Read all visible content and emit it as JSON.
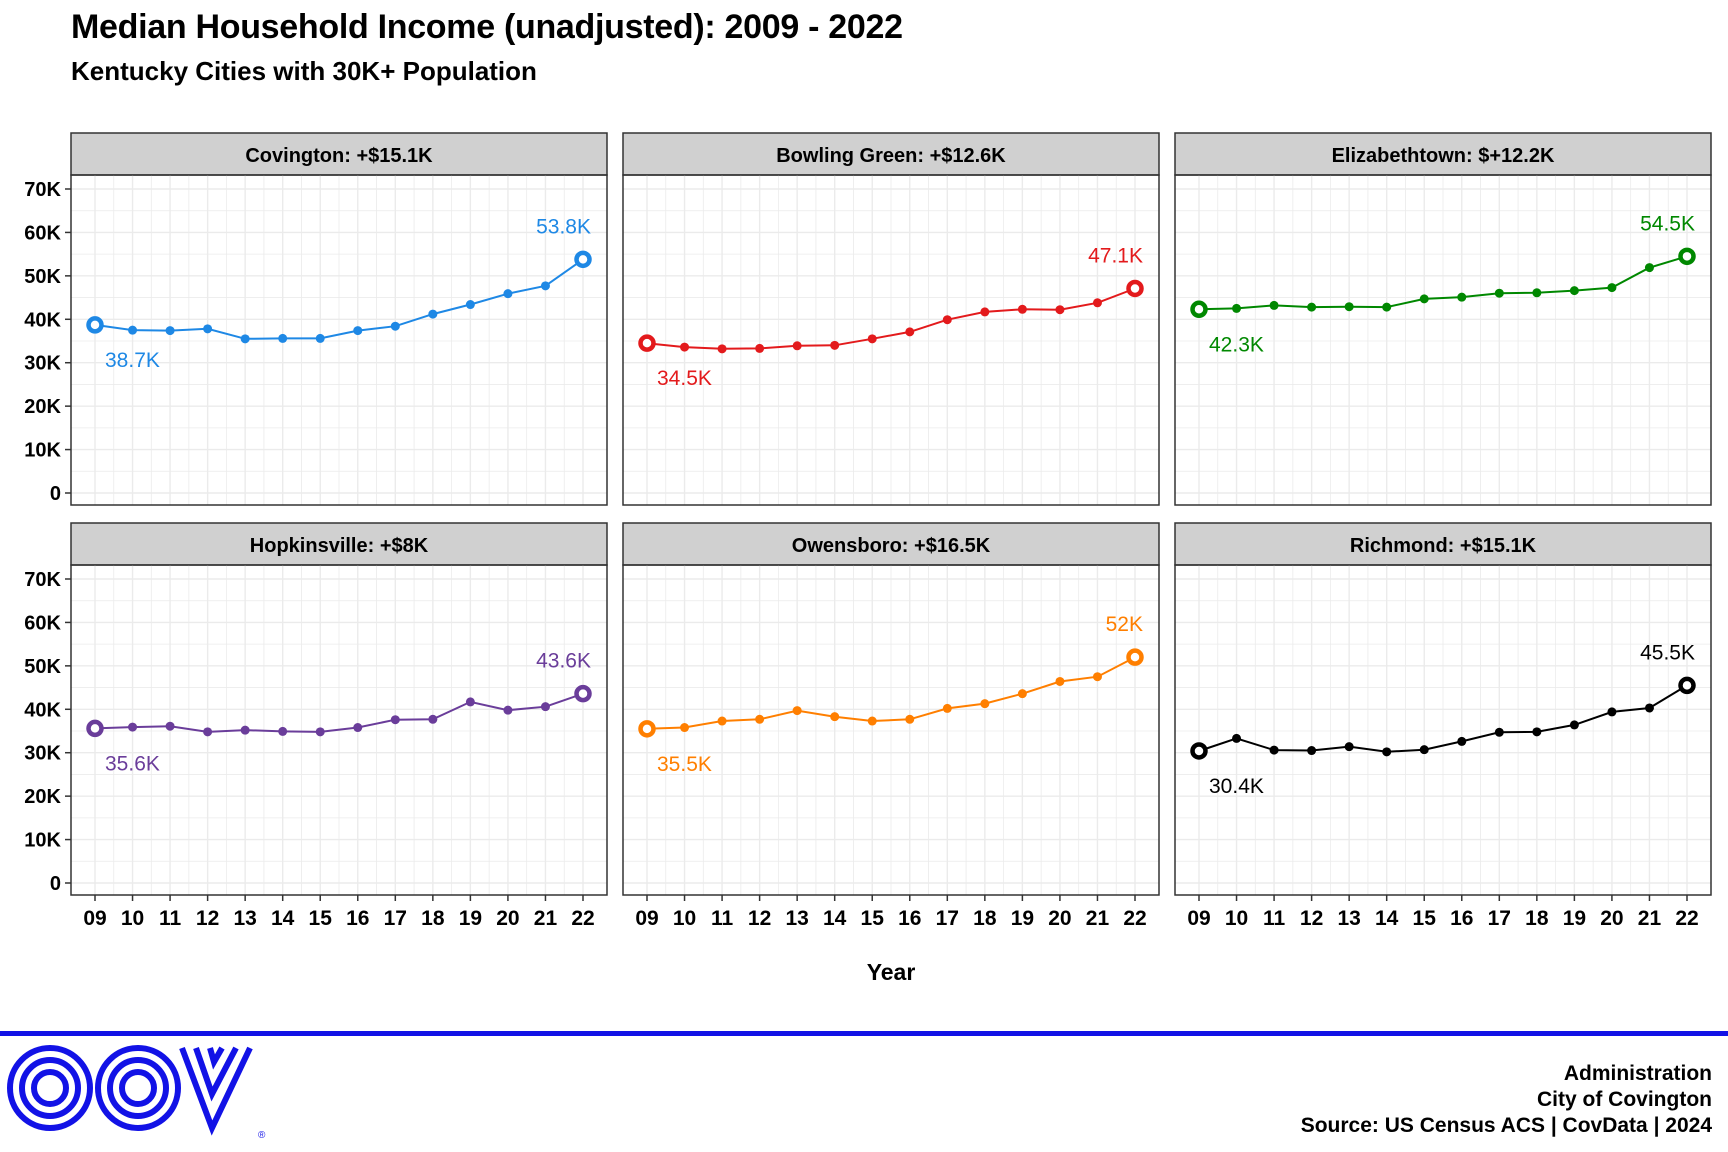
{
  "title": "Median Household Income (unadjusted): 2009 - 2022",
  "subtitle": "Kentucky Cities with 30K+ Population",
  "footer": {
    "line1": "Administration",
    "line2": "City of Covington",
    "line3": "Source: US Census ACS | CovData | 2024",
    "logo_text": "COV"
  },
  "colors": {
    "panel_strip": "#d0d0d0",
    "grid": "#ebebeb",
    "footer_bar": "#1212e6"
  },
  "chart_data": {
    "type": "line",
    "xlabel": "Year",
    "x": [
      "09",
      "10",
      "11",
      "12",
      "13",
      "14",
      "15",
      "16",
      "17",
      "18",
      "19",
      "20",
      "21",
      "22"
    ],
    "ylim": [
      0,
      70
    ],
    "y_ticks": [
      "0",
      "10K",
      "20K",
      "30K",
      "40K",
      "50K",
      "60K",
      "70K"
    ],
    "panels": [
      {
        "name": "Covington: +$15.1K",
        "color": "#1e88e5",
        "values": [
          38.7,
          37.5,
          37.4,
          37.8,
          35.5,
          35.6,
          35.6,
          37.4,
          38.4,
          41.2,
          43.4,
          45.9,
          47.7,
          53.8
        ],
        "start_label": "38.7K",
        "end_label": "53.8K"
      },
      {
        "name": "Bowling Green: +$12.6K",
        "color": "#e31a1c",
        "values": [
          34.5,
          33.6,
          33.2,
          33.3,
          33.9,
          34.0,
          35.5,
          37.1,
          39.9,
          41.7,
          42.3,
          42.2,
          43.8,
          47.1
        ],
        "start_label": "34.5K",
        "end_label": "47.1K"
      },
      {
        "name": "Elizabethtown: $+12.2K",
        "color": "#008800",
        "values": [
          42.3,
          42.5,
          43.2,
          42.8,
          42.9,
          42.8,
          44.7,
          45.1,
          46.0,
          46.1,
          46.6,
          47.3,
          51.9,
          54.5
        ],
        "start_label": "42.3K",
        "end_label": "54.5K"
      },
      {
        "name": "Hopkinsville: +$8K",
        "color": "#6a3d9a",
        "values": [
          35.6,
          35.9,
          36.1,
          34.8,
          35.2,
          34.9,
          34.8,
          35.8,
          37.6,
          37.7,
          41.7,
          39.8,
          40.6,
          43.6
        ],
        "start_label": "35.6K",
        "end_label": "43.6K"
      },
      {
        "name": "Owensboro: +$16.5K",
        "color": "#ff7f00",
        "values": [
          35.5,
          35.8,
          37.3,
          37.7,
          39.7,
          38.3,
          37.3,
          37.7,
          40.2,
          41.3,
          43.6,
          46.4,
          47.5,
          52.0
        ],
        "start_label": "35.5K",
        "end_label": "52K"
      },
      {
        "name": "Richmond: +$15.1K",
        "color": "#000000",
        "values": [
          30.4,
          33.3,
          30.6,
          30.5,
          31.4,
          30.2,
          30.7,
          32.6,
          34.7,
          34.8,
          36.4,
          39.4,
          40.3,
          45.5
        ],
        "start_label": "30.4K",
        "end_label": "45.5K"
      }
    ]
  }
}
